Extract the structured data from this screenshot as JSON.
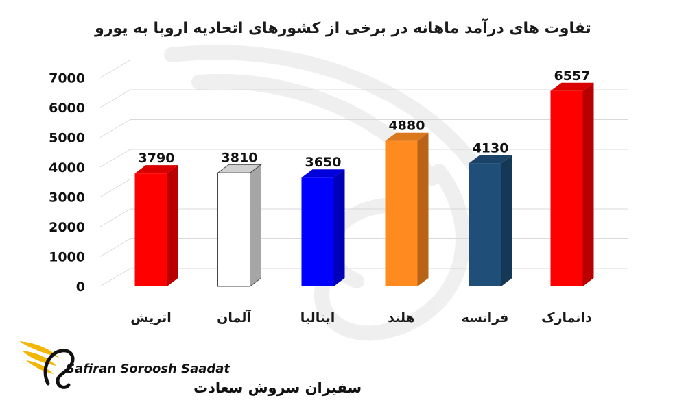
{
  "chart_data": {
    "type": "bar",
    "title": "تفاوت های درآمد ماهانه در برخی از کشورهای اتحادیه اروپا به یورو",
    "xlabel": "",
    "ylabel": "",
    "ylim": [
      0,
      7000
    ],
    "yticks": [
      "0",
      "1000",
      "2000",
      "3000",
      "4000",
      "5000",
      "6000",
      "7000"
    ],
    "grid": true,
    "categories": [
      "اتریش",
      "آلمان",
      "ایتالیا",
      "هلند",
      "فرانسه",
      "دانمارک"
    ],
    "values": [
      3790,
      3810,
      3650,
      4880,
      4130,
      6557
    ],
    "data_labels": [
      "3790",
      "3810",
      "3650",
      "4880",
      "4130",
      "6557"
    ],
    "colors": [
      "#ff0000",
      "#ffffff",
      "#0000ff",
      "#ff8a20",
      "#1f4e79",
      "#ff0000"
    ]
  },
  "logo": {
    "brand_en": "Safiran Soroosh Saadat",
    "brand_fa": "سفیران سروش سعادت",
    "accent": "#f2b705"
  }
}
